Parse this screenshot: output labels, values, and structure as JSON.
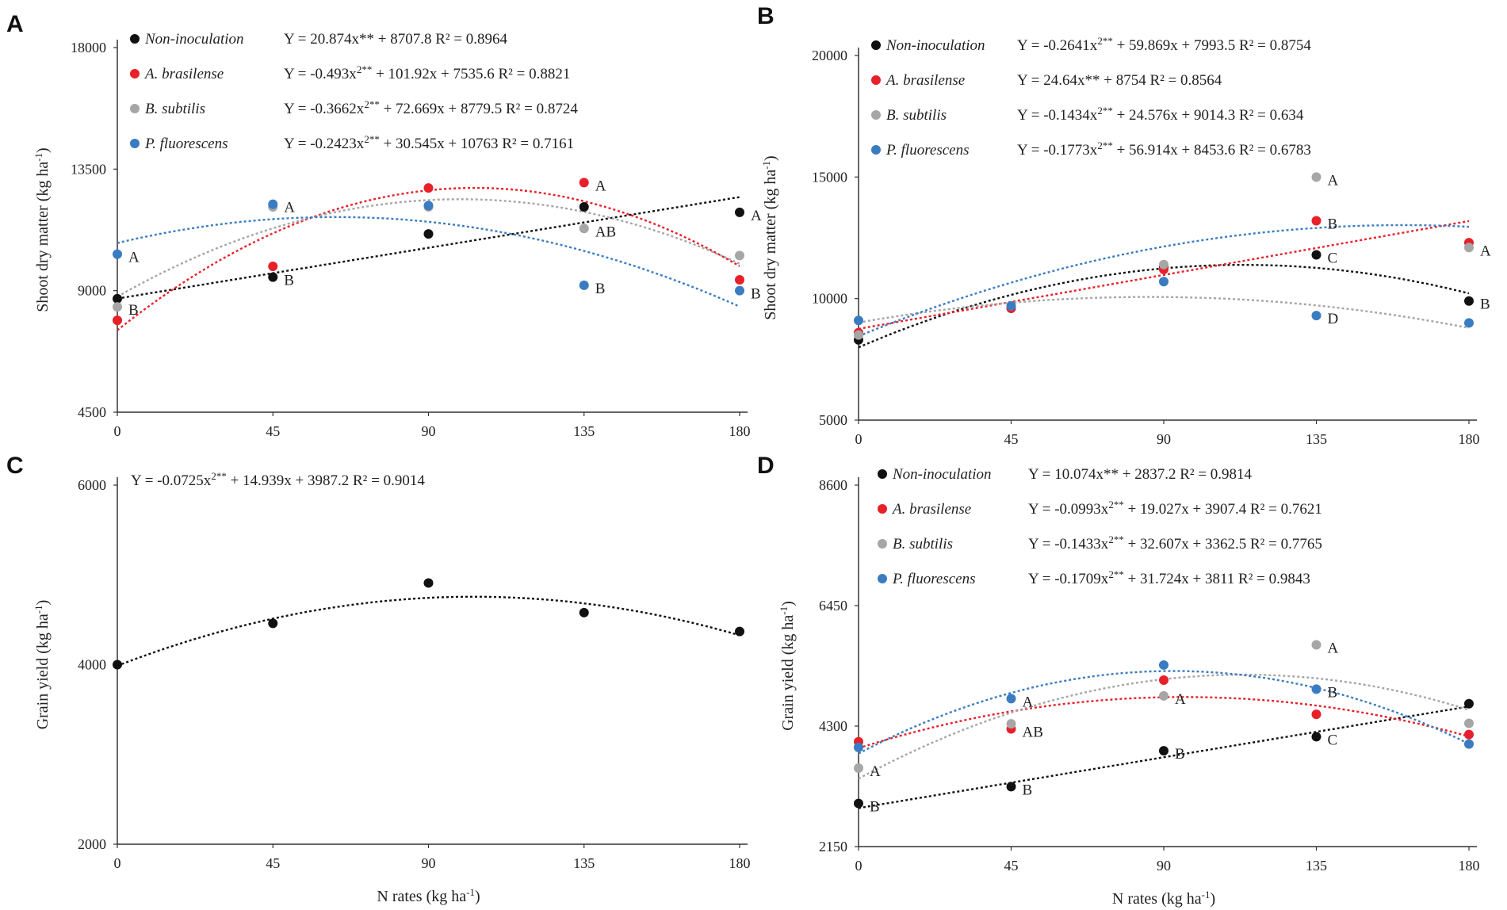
{
  "panels_common": {
    "series_colors": {
      "Non-inoculation": "#111111",
      "A. brasilense": "#e8202a",
      "B. subtilis": "#a6a6a6",
      "P. fluorescens": "#3a7cc1"
    }
  },
  "chart_data": [
    {
      "type": "scatter",
      "panel_label": "A",
      "title": "",
      "xlabel": "",
      "ylabel": "Shoot dry matter (kg ha",
      "ylabel_sup": "-1",
      "ylabel_end": ")",
      "xlim": [
        0,
        180
      ],
      "ylim": [
        4500,
        18000
      ],
      "x_ticks": [
        "0",
        "45",
        "90",
        "135",
        "180"
      ],
      "y_ticks": [
        "4500",
        "9000",
        "13500",
        "18000"
      ],
      "x": [
        0,
        45,
        90,
        135,
        180
      ],
      "series": [
        {
          "name": "Non-inoculation",
          "color": "#111111",
          "values": [
            8700,
            9500,
            11100,
            12100,
            11900
          ],
          "eq_pre": "Y = 20.874x**",
          "eq_post": " + 8707.8 R² = 0.8964",
          "sup": "",
          "fit": [
            0,
            20.874,
            8707.8
          ]
        },
        {
          "name": "A. brasilense",
          "color": "#e8202a",
          "values": [
            7900,
            9900,
            12800,
            13000,
            9400
          ],
          "eq_pre": "Y = -0.493x",
          "sup": "2**",
          "eq_post": " + 101.92x + 7535.6 R² = 0.8821",
          "fit": [
            -0.493,
            101.92,
            7535.6
          ]
        },
        {
          "name": "B. subtilis",
          "color": "#a6a6a6",
          "values": [
            8400,
            12100,
            12100,
            11300,
            10300
          ],
          "eq_pre": "Y = -0.3662x",
          "sup": "2**",
          "eq_post": " + 72.669x + 8779.5 R² = 0.8724",
          "fit": [
            -0.3662,
            72.669,
            8779.5
          ]
        },
        {
          "name": "P. fluorescens",
          "color": "#3a7cc1",
          "values": [
            10350,
            12200,
            12150,
            9200,
            9000
          ],
          "eq_pre": "Y = -0.2423x",
          "sup": "2**",
          "eq_post": " + 30.545x + 10763 R² = 0.7161",
          "fit": [
            -0.2423,
            30.545,
            10763
          ]
        }
      ],
      "annotations": [
        {
          "text": "B",
          "x": 0,
          "y": 8400
        },
        {
          "text": "A",
          "x": 0,
          "y": 10350
        },
        {
          "text": "A",
          "x": 45,
          "y": 12200
        },
        {
          "text": "B",
          "x": 45,
          "y": 9500
        },
        {
          "text": "A",
          "x": 135,
          "y": 13000
        },
        {
          "text": "AB",
          "x": 135,
          "y": 11300
        },
        {
          "text": "B",
          "x": 135,
          "y": 9200
        },
        {
          "text": "A",
          "x": 180,
          "y": 11900
        },
        {
          "text": "B",
          "x": 180,
          "y": 9000
        }
      ]
    },
    {
      "type": "scatter",
      "panel_label": "B",
      "title": "",
      "xlabel": "",
      "ylabel": "Shoot dry matter (kg ha",
      "ylabel_sup": "-1",
      "ylabel_end": ")",
      "xlim": [
        0,
        180
      ],
      "ylim": [
        5000,
        20000
      ],
      "x_ticks": [
        "0",
        "45",
        "90",
        "135",
        "180"
      ],
      "y_ticks": [
        "5000",
        "10000",
        "15000",
        "20000"
      ],
      "x": [
        0,
        45,
        90,
        135,
        180
      ],
      "series": [
        {
          "name": "Non-inoculation",
          "color": "#111111",
          "values": [
            8300,
            9600,
            11300,
            11800,
            9900
          ],
          "eq_pre": "Y = -0.2641x",
          "sup": "2**",
          "eq_post": " + 59.869x + 7993.5 R² = 0.8754",
          "fit": [
            -0.2641,
            59.869,
            7993.5
          ]
        },
        {
          "name": "A. brasilense",
          "color": "#e8202a",
          "values": [
            8600,
            9600,
            11200,
            13200,
            12300
          ],
          "eq_pre": "Y = 24.64x**",
          "sup": "",
          "eq_post": " + 8754 R² = 0.8564",
          "fit": [
            0,
            24.64,
            8754
          ]
        },
        {
          "name": "B. subtilis",
          "color": "#a6a6a6",
          "values": [
            8500,
            9700,
            11400,
            15000,
            12100
          ],
          "eq_pre": "Y = -0.1434x",
          "sup": "2**",
          "eq_post": " + 24.576x + 9014.3 R² = 0.634",
          "fit": [
            -0.1434,
            24.576,
            9014.3
          ]
        },
        {
          "name": "P. fluorescens",
          "color": "#3a7cc1",
          "values": [
            9100,
            9700,
            10700,
            9300,
            9000
          ],
          "eq_pre": "Y = -0.1773x",
          "sup": "2**",
          "eq_post": " + 56.914x + 8453.6 R² = 0.6783",
          "fit": [
            -0.1773,
            56.914,
            8453.6
          ]
        }
      ],
      "annotations": [
        {
          "text": "A",
          "x": 135,
          "y": 15000
        },
        {
          "text": "B",
          "x": 135,
          "y": 13200
        },
        {
          "text": "C",
          "x": 135,
          "y": 11800
        },
        {
          "text": "D",
          "x": 135,
          "y": 9300
        },
        {
          "text": "A",
          "x": 180,
          "y": 12100
        },
        {
          "text": "B",
          "x": 180,
          "y": 9900
        }
      ]
    },
    {
      "type": "scatter",
      "panel_label": "C",
      "title": "",
      "xlabel": "N rates (kg ha",
      "xlabel_sup": "-1",
      "xlabel_end": ")",
      "ylabel": "Grain yield (kg ha",
      "ylabel_sup": "-1",
      "ylabel_end": ")",
      "xlim": [
        0,
        180
      ],
      "ylim": [
        2000,
        6000
      ],
      "x_ticks": [
        "0",
        "45",
        "90",
        "135",
        "180"
      ],
      "y_ticks": [
        "2000",
        "4000",
        "6000"
      ],
      "x": [
        0,
        45,
        90,
        135,
        180
      ],
      "series": [
        {
          "name": "",
          "color": "#111111",
          "values": [
            4000,
            4460,
            4910,
            4580,
            4370
          ],
          "eq_pre": "Y = -0.0725x",
          "sup": "2**",
          "eq_post": " + 14.939x + 3987.2 R² = 0.9014",
          "fit": [
            -0.0725,
            14.939,
            3987.2
          ]
        }
      ],
      "annotations": []
    },
    {
      "type": "scatter",
      "panel_label": "D",
      "title": "",
      "xlabel": "N rates (kg ha",
      "xlabel_sup": "-1",
      "xlabel_end": ")",
      "ylabel": "Grain yield (kg ha",
      "ylabel_sup": "-1",
      "ylabel_end": ")",
      "xlim": [
        0,
        180
      ],
      "ylim": [
        2150,
        8600
      ],
      "x_ticks": [
        "0",
        "45",
        "90",
        "135",
        "180"
      ],
      "y_ticks": [
        "2150",
        "4300",
        "6450",
        "8600"
      ],
      "x": [
        0,
        45,
        90,
        135,
        180
      ],
      "series": [
        {
          "name": "Non-inoculation",
          "color": "#111111",
          "values": [
            2920,
            3220,
            3860,
            4110,
            4700
          ],
          "eq_pre": "Y = 10.074x**",
          "sup": "",
          "eq_post": " + 2837.2 R² = 0.9814",
          "fit": [
            0,
            10.074,
            2837.2
          ]
        },
        {
          "name": "A. brasilense",
          "color": "#e8202a",
          "values": [
            4020,
            4250,
            5120,
            4510,
            4150
          ],
          "eq_pre": "Y = -0.0993x",
          "sup": "2**",
          "eq_post": " + 19.027x + 3907.4 R² = 0.7621",
          "fit": [
            -0.0993,
            19.027,
            3907.4
          ]
        },
        {
          "name": "B. subtilis",
          "color": "#a6a6a6",
          "values": [
            3550,
            4340,
            4840,
            5750,
            4350
          ],
          "eq_pre": "Y = -0.1433x",
          "sup": "2**",
          "eq_post": " + 32.607x + 3362.5 R² = 0.7765",
          "fit": [
            -0.1433,
            32.607,
            3362.5
          ]
        },
        {
          "name": "P. fluorescens",
          "color": "#3a7cc1",
          "values": [
            3920,
            4790,
            5390,
            4960,
            3980
          ],
          "eq_pre": "Y = -0.1709x",
          "sup": "2**",
          "eq_post": " + 31.724x + 3811 R² = 0.9843",
          "fit": [
            -0.1709,
            31.724,
            3811
          ]
        }
      ],
      "annotations": [
        {
          "text": "A",
          "x": 0,
          "y": 3550
        },
        {
          "text": "B",
          "x": 0,
          "y": 2920
        },
        {
          "text": "A",
          "x": 45,
          "y": 4790
        },
        {
          "text": "AB",
          "x": 45,
          "y": 4250
        },
        {
          "text": "B",
          "x": 45,
          "y": 3220
        },
        {
          "text": "A",
          "x": 90,
          "y": 4840
        },
        {
          "text": "B",
          "x": 90,
          "y": 3860
        },
        {
          "text": "A",
          "x": 135,
          "y": 5750
        },
        {
          "text": "B",
          "x": 135,
          "y": 4960
        },
        {
          "text": "C",
          "x": 135,
          "y": 4110
        }
      ]
    }
  ]
}
